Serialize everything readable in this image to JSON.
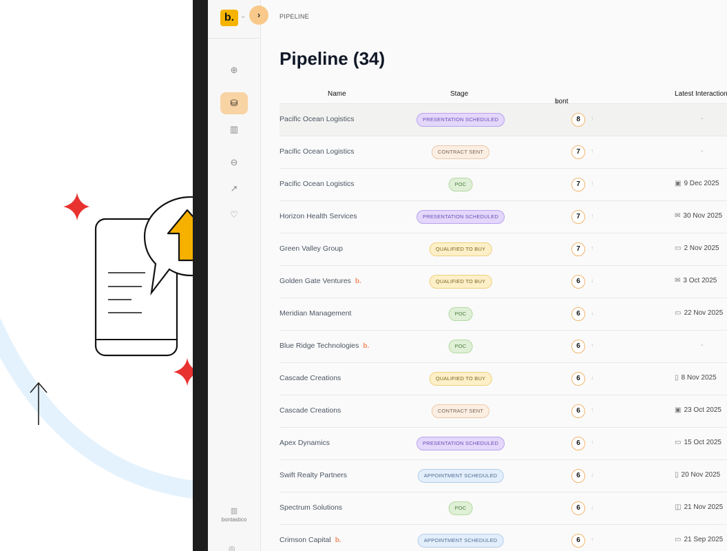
{
  "breadcrumb": "PIPELINE",
  "page_title": "Pipeline (34)",
  "logo_text": "b.",
  "workspace_name": "bontastico",
  "table": {
    "headers": {
      "name": "Name",
      "stage": "Stage",
      "score": "bont Score",
      "latest": "Latest Interaction"
    },
    "rows": [
      {
        "name": "Pacific Ocean Logistics",
        "badge": "",
        "stage": "PRESENTATION SCHEDULED",
        "stage_kind": "presentation",
        "score": "8",
        "trend": "↑",
        "latest": "-",
        "latest_icon": ""
      },
      {
        "name": "Pacific Ocean Logistics",
        "badge": "",
        "stage": "CONTRACT SENT",
        "stage_kind": "contract",
        "score": "7",
        "trend": "↑",
        "latest": "-",
        "latest_icon": ""
      },
      {
        "name": "Pacific Ocean Logistics",
        "badge": "",
        "stage": "POC",
        "stage_kind": "poc",
        "score": "7",
        "trend": "↑",
        "latest": "9 Dec 2025",
        "latest_icon": "linkedin-icon"
      },
      {
        "name": "Horizon Health Services",
        "badge": "",
        "stage": "PRESENTATION SCHEDULED",
        "stage_kind": "presentation",
        "score": "7",
        "trend": "↑",
        "latest": "30 Nov 2025",
        "latest_icon": "mail-icon"
      },
      {
        "name": "Green Valley Group",
        "badge": "",
        "stage": "QUALIFIED TO BUY",
        "stage_kind": "qualified",
        "score": "7",
        "trend": "↑",
        "latest": "2 Nov 2025",
        "latest_icon": "calendar-icon"
      },
      {
        "name": "Golden Gate Ventures",
        "badge": "b.",
        "stage": "QUALIFIED TO BUY",
        "stage_kind": "qualified",
        "score": "6",
        "trend": "↓",
        "latest": "3 Oct 2025",
        "latest_icon": "mail-icon"
      },
      {
        "name": "Meridian Management",
        "badge": "",
        "stage": "POC",
        "stage_kind": "poc",
        "score": "6",
        "trend": "↓",
        "latest": "22 Nov 2025",
        "latest_icon": "calendar-icon"
      },
      {
        "name": "Blue Ridge Technologies",
        "badge": "b.",
        "stage": "POC",
        "stage_kind": "poc",
        "score": "6",
        "trend": "↑",
        "latest": "-",
        "latest_icon": ""
      },
      {
        "name": "Cascade Creations",
        "badge": "",
        "stage": "QUALIFIED TO BUY",
        "stage_kind": "qualified",
        "score": "6",
        "trend": "↓",
        "latest": "8 Nov 2025",
        "latest_icon": "phone-icon"
      },
      {
        "name": "Cascade Creations",
        "badge": "",
        "stage": "CONTRACT SENT",
        "stage_kind": "contract",
        "score": "6",
        "trend": "↑",
        "latest": "23 Oct 2025",
        "latest_icon": "linkedin-icon"
      },
      {
        "name": "Apex Dynamics",
        "badge": "",
        "stage": "PRESENTATION SCHEDULED",
        "stage_kind": "presentation",
        "score": "6",
        "trend": "↑",
        "latest": "15 Oct 2025",
        "latest_icon": "calendar-icon"
      },
      {
        "name": "Swift Realty Partners",
        "badge": "",
        "stage": "APPOINTMENT SCHEDULED",
        "stage_kind": "appointment",
        "score": "6",
        "trend": "↓",
        "latest": "20 Nov 2025",
        "latest_icon": "phone-icon"
      },
      {
        "name": "Spectrum Solutions",
        "badge": "",
        "stage": "POC",
        "stage_kind": "poc",
        "score": "6",
        "trend": "↓",
        "latest": "21 Nov 2025",
        "latest_icon": "card-icon"
      },
      {
        "name": "Crimson Capital",
        "badge": "b.",
        "stage": "APPOINTMENT SCHEDULED",
        "stage_kind": "appointment",
        "score": "6",
        "trend": "↑",
        "latest": "21 Sep 2025",
        "latest_icon": "calendar-icon"
      }
    ]
  },
  "stage_colors": {
    "presentation": {
      "bg": "#e3d7fb",
      "border": "#b9a2ef",
      "text": "#6b4fb3"
    },
    "contract": {
      "bg": "#fbeee3",
      "border": "#ecc9a8",
      "text": "#7a6454"
    },
    "poc": {
      "bg": "#dff0d6",
      "border": "#b4d9a3",
      "text": "#4c7a3d"
    },
    "qualified": {
      "bg": "#fdf0c8",
      "border": "#f0cf7a",
      "text": "#7d6421"
    },
    "appointment": {
      "bg": "#e2eefb",
      "border": "#b3cdea",
      "text": "#4f6e93"
    }
  },
  "icons": {
    "linkedin-icon": "▣",
    "mail-icon": "✉",
    "calendar-icon": "▭",
    "phone-icon": "▯",
    "card-icon": "◫"
  },
  "colors": {
    "accent": "#f5b400",
    "active_nav": "#f8d3a3",
    "score_ring": "#f2b56b"
  }
}
